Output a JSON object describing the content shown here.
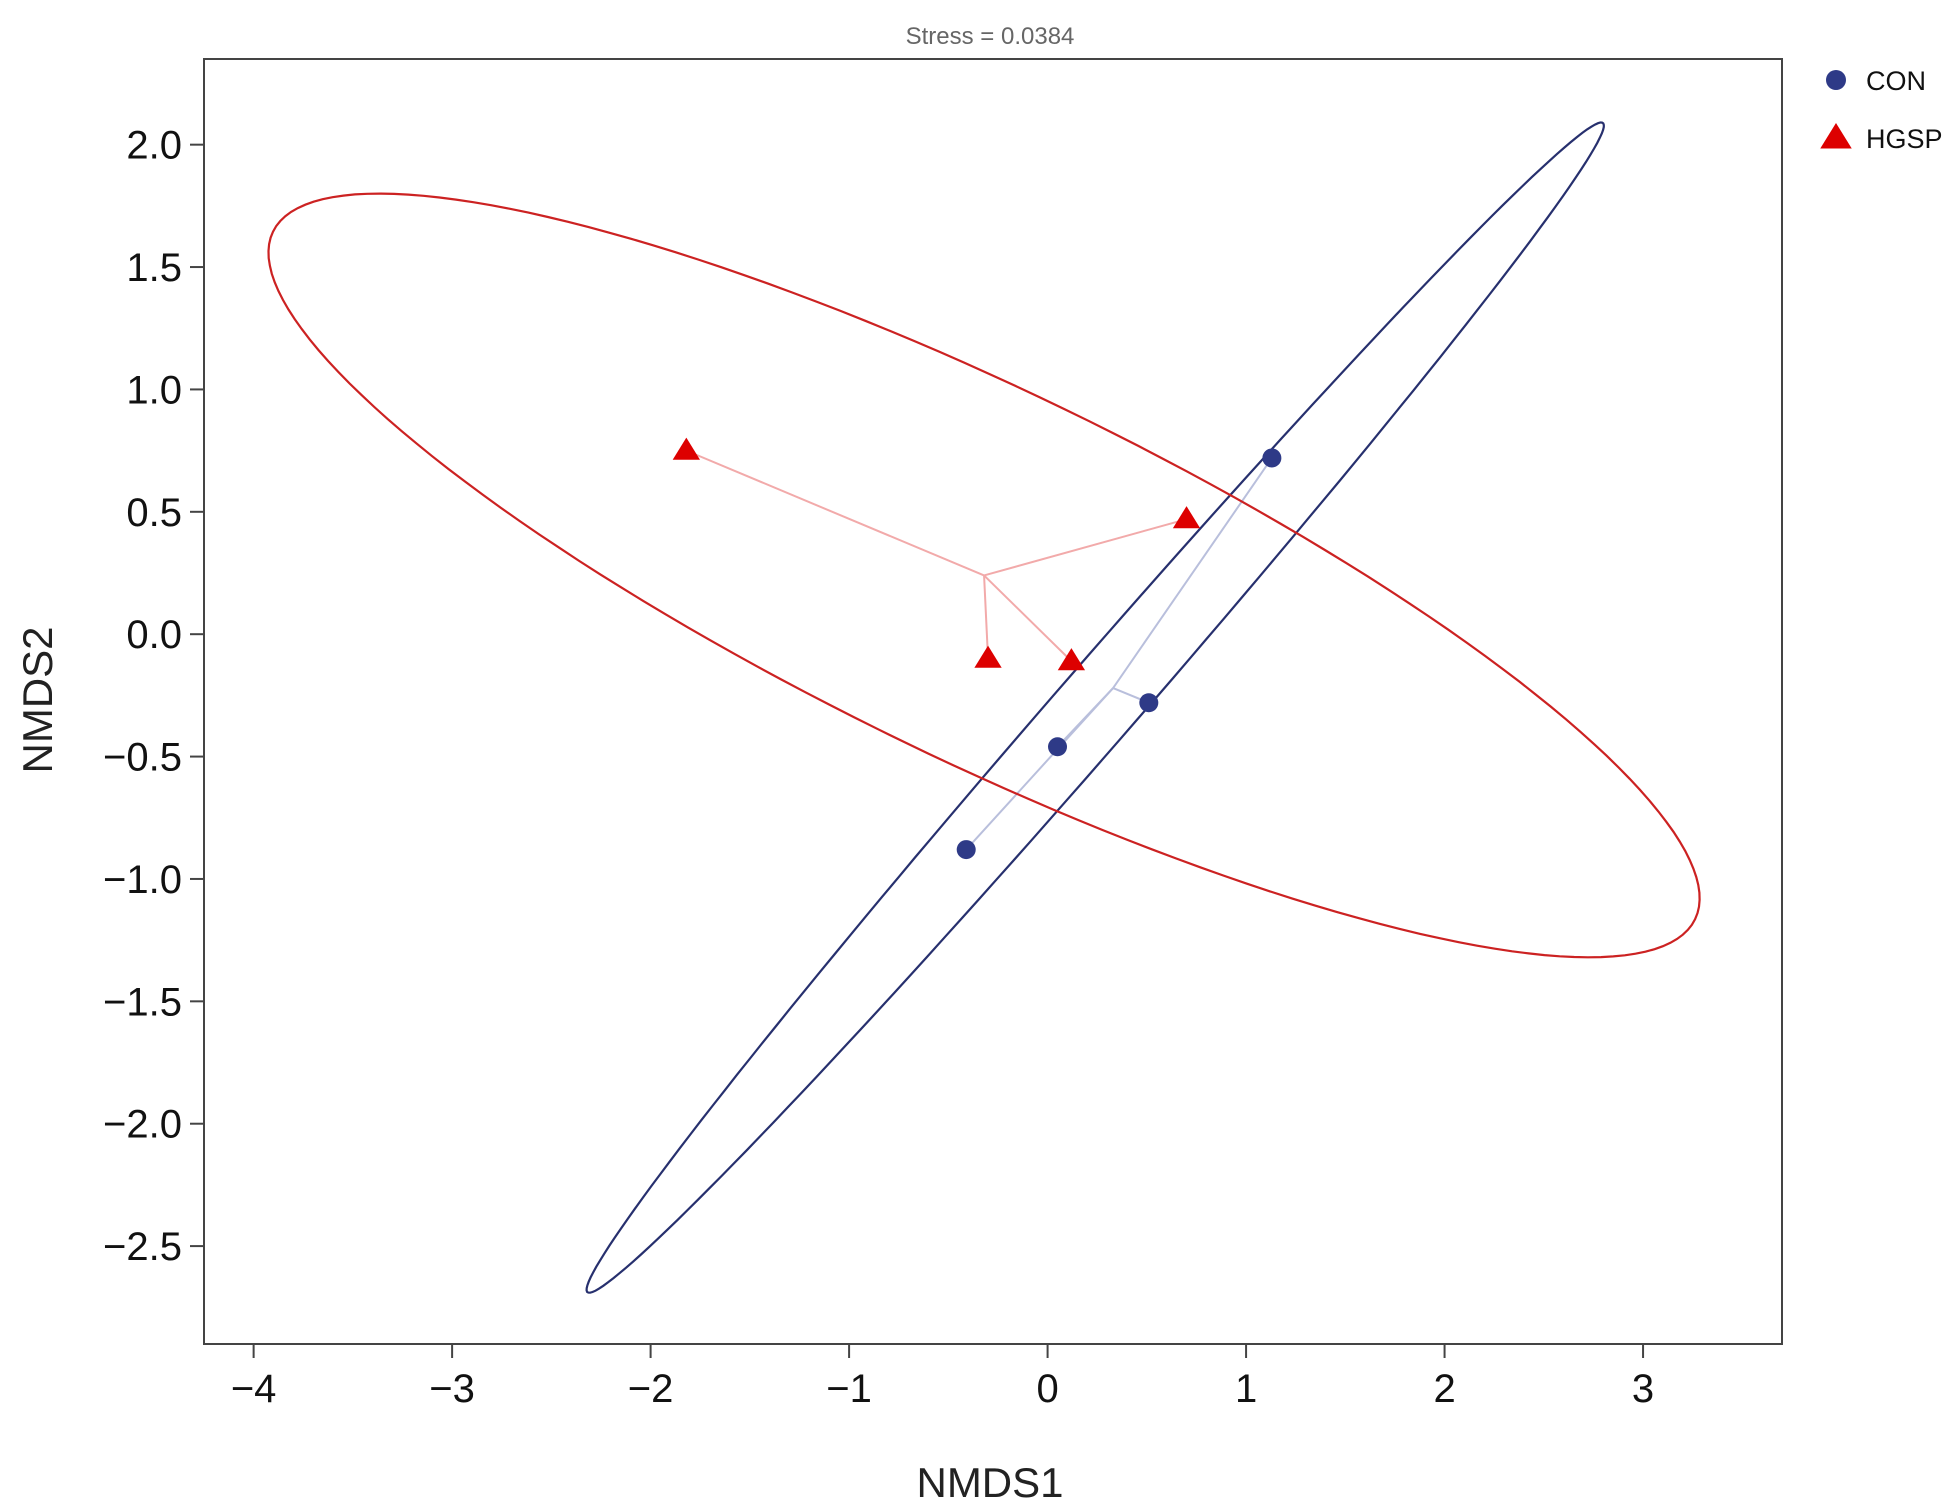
{
  "chart_data": {
    "type": "scatter",
    "title": "",
    "subtitle": "Stress = 0.0384",
    "xlabel": "NMDS1",
    "ylabel": "NMDS2",
    "xlim": [
      -4.25,
      3.7
    ],
    "ylim": [
      -2.9,
      2.35
    ],
    "x_ticks": [
      -4,
      -3,
      -2,
      -1,
      0,
      1,
      2,
      3
    ],
    "x_tick_labels": [
      "−4",
      "−3",
      "−2",
      "−1",
      "0",
      "1",
      "2",
      "3"
    ],
    "y_ticks": [
      2.0,
      1.5,
      1.0,
      0.5,
      0.0,
      -0.5,
      -1.0,
      -1.5,
      -2.0,
      -2.5
    ],
    "y_tick_labels": [
      "2.0",
      "1.5",
      "1.0",
      "0.5",
      "0.0",
      "−0.5",
      "−1.0",
      "−1.5",
      "−2.0",
      "−2.5"
    ],
    "grid": false,
    "legend_position": "outside-top-right",
    "series": [
      {
        "name": "CON",
        "marker": "circle",
        "color": "#2e3a87",
        "spider_color": "#b9bfdc",
        "ellipse_color": "#27306e",
        "centroid": [
          0.33,
          -0.22
        ],
        "points": [
          [
            1.13,
            0.72
          ],
          [
            0.51,
            -0.28
          ],
          [
            0.05,
            -0.46
          ],
          [
            -0.41,
            -0.88
          ]
        ],
        "ellipse": {
          "center": [
            0.24,
            -0.3
          ],
          "semi_major": 3.5,
          "semi_minor": 0.18,
          "angle_deg": 43
        }
      },
      {
        "name": "HGSP",
        "marker": "triangle",
        "color": "#dd0000",
        "spider_color": "#f2aaaa",
        "ellipse_color": "#cc2222",
        "centroid": [
          -0.32,
          0.24
        ],
        "points": [
          [
            -1.82,
            0.75
          ],
          [
            0.7,
            0.47
          ],
          [
            -0.3,
            -0.1
          ],
          [
            0.12,
            -0.11
          ]
        ],
        "ellipse": {
          "center": [
            -0.32,
            0.24
          ],
          "semi_major": 3.85,
          "semi_minor": 0.78,
          "angle_deg": -21
        }
      }
    ]
  }
}
